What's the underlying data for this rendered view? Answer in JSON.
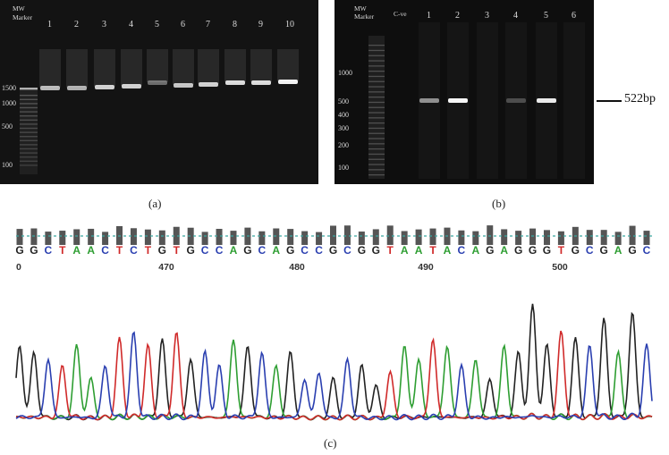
{
  "gel_a": {
    "caption": "(a)",
    "mw_label_line1": "MW",
    "mw_label_line2": "Marker",
    "lanes": [
      "1",
      "2",
      "3",
      "4",
      "5",
      "6",
      "7",
      "8",
      "9",
      "10"
    ],
    "marker_labels": [
      "1500",
      "1000",
      "500",
      "100"
    ]
  },
  "gel_b": {
    "caption": "(b)",
    "mw_label_line1": "MW",
    "mw_label_line2": "Marker",
    "control_label": "C-ve",
    "lanes": [
      "1",
      "2",
      "3",
      "4",
      "5",
      "6"
    ],
    "marker_labels": [
      "1000",
      "500",
      "400",
      "300",
      "200",
      "100"
    ],
    "product_size": "522bp"
  },
  "sequencing": {
    "caption": "(c)",
    "sequence": "GGCTAACTCTGTGCCAGCAGCCGCGGTAATACAGAGGGTGCGAGC",
    "positions": [
      "470",
      "480",
      "490",
      "500"
    ],
    "left_position_fragment": "0",
    "base_colors": {
      "A": "#2e9e32",
      "C": "#2a3fb0",
      "G": "#222222",
      "T": "#d02a2a"
    }
  }
}
